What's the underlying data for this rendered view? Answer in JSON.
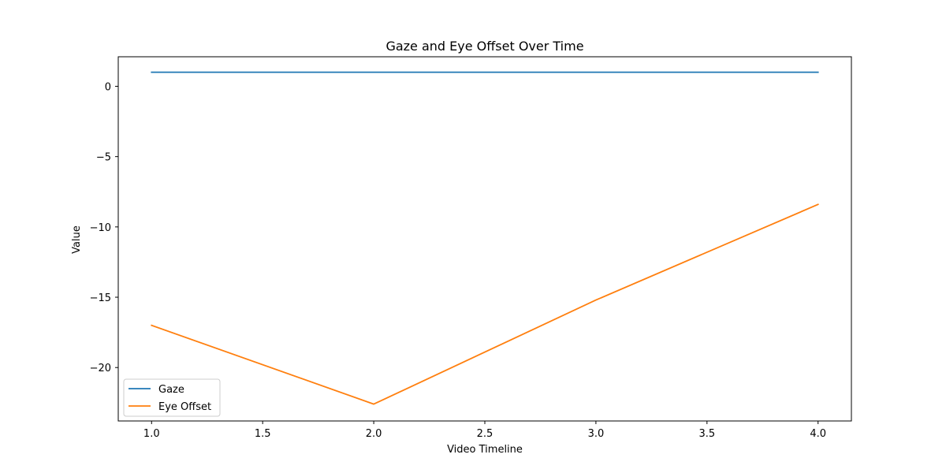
{
  "chart_data": {
    "type": "line",
    "title": "Gaze and Eye Offset Over Time",
    "xlabel": "Video Timeline",
    "ylabel": "Value",
    "x": [
      1,
      2,
      3,
      4
    ],
    "series": [
      {
        "name": "Gaze",
        "color": "#1f77b4",
        "values": [
          1,
          1,
          1,
          1
        ]
      },
      {
        "name": "Eye Offset",
        "color": "#ff7f0e",
        "values": [
          -17.0,
          -22.6,
          -15.2,
          -8.4
        ]
      }
    ],
    "xlim": [
      0.85,
      4.15
    ],
    "ylim": [
      -23.8,
      2.1
    ],
    "xticks": [
      1.0,
      1.5,
      2.0,
      2.5,
      3.0,
      3.5,
      4.0
    ],
    "xtick_labels": [
      "1.0",
      "1.5",
      "2.0",
      "2.5",
      "3.0",
      "3.5",
      "4.0"
    ],
    "yticks": [
      0,
      -5,
      -10,
      -15,
      -20
    ],
    "ytick_labels": [
      "0",
      "−5",
      "−10",
      "−15",
      "−20"
    ],
    "grid": false,
    "legend_position": "lower-left"
  }
}
